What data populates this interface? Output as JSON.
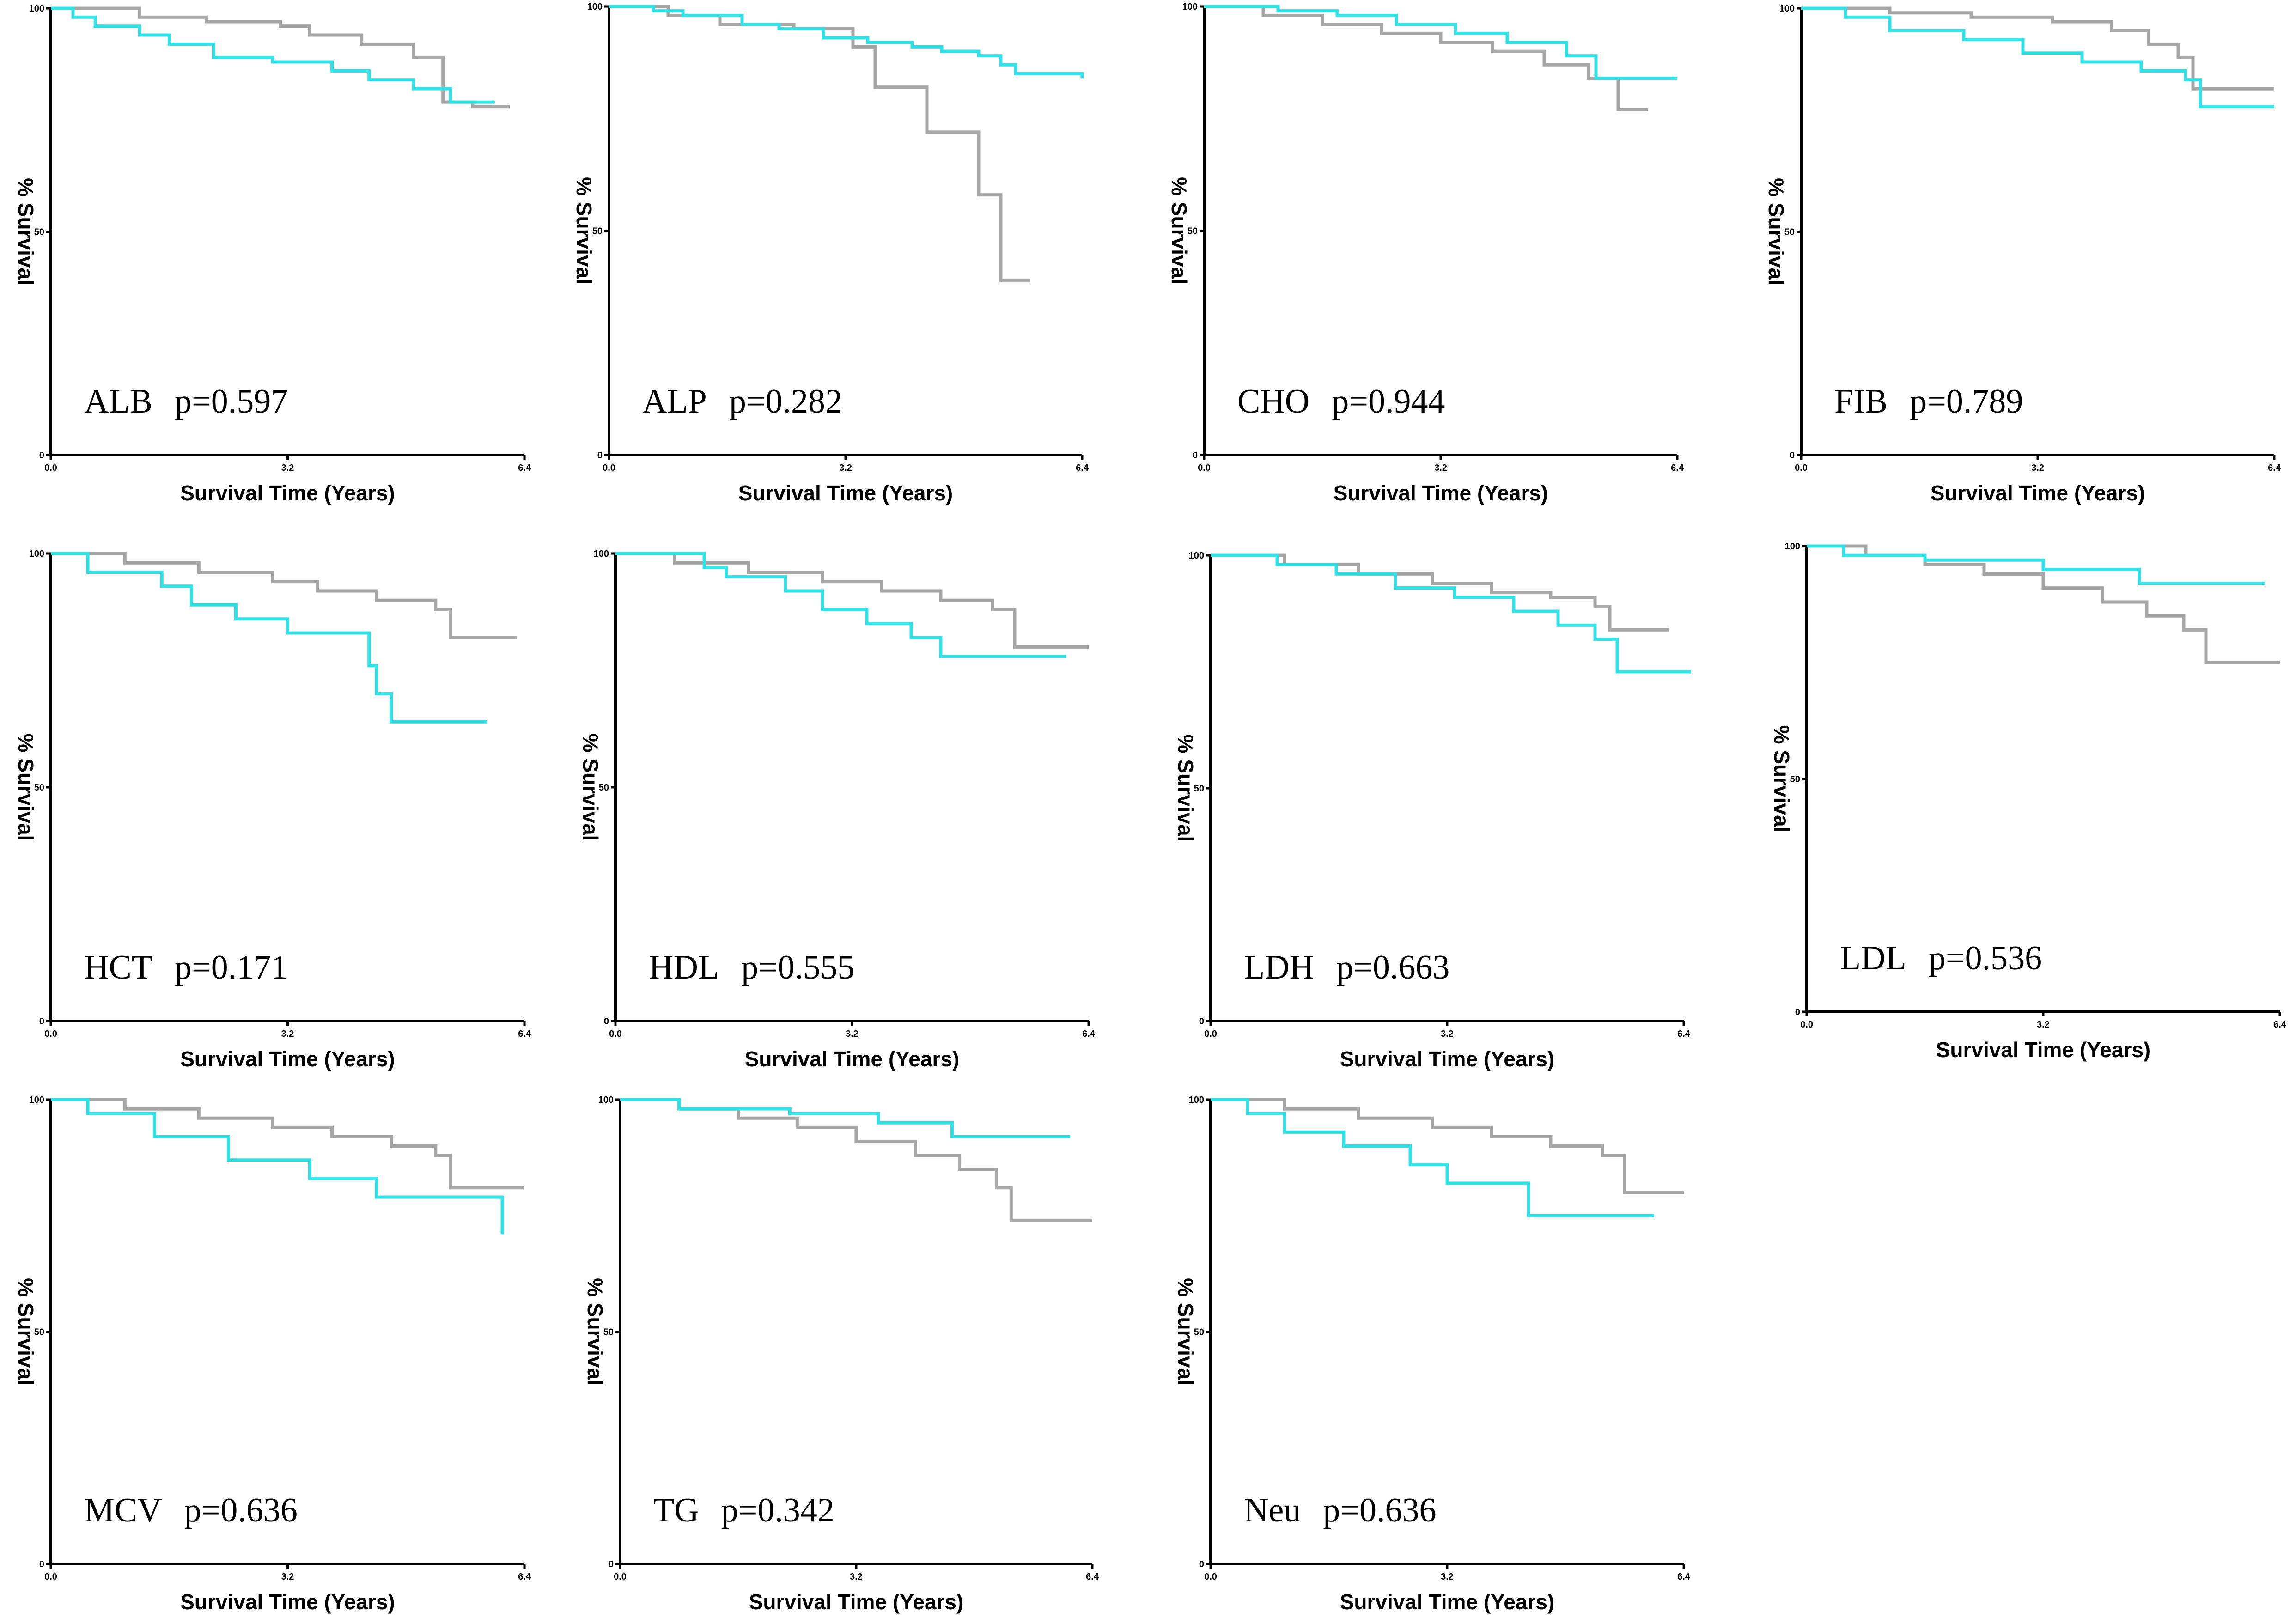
{
  "chart_data": [
    {
      "type": "line",
      "marker": "ALB",
      "p_label": "p=0.597",
      "xlabel": "Survival Time (Years)",
      "ylabel": "% Survival",
      "xlim": [
        0,
        6.4
      ],
      "ylim": [
        0,
        100
      ],
      "xticks": [
        "0.0",
        "3.2",
        "6.4"
      ],
      "yticks": [
        "0",
        "50",
        "100"
      ],
      "series": [
        {
          "name": "cyan",
          "color": "#33E0E6",
          "x": [
            0,
            0.3,
            0.6,
            1.2,
            1.6,
            2.2,
            3.0,
            3.8,
            4.3,
            4.9,
            5.4,
            6.0
          ],
          "y": [
            100,
            98,
            96,
            94,
            92,
            89,
            88,
            86,
            84,
            82,
            79,
            79
          ]
        },
        {
          "name": "gray",
          "color": "#A6A6A6",
          "x": [
            0,
            1.2,
            2.1,
            3.1,
            3.5,
            4.2,
            4.9,
            5.3,
            5.7,
            6.2
          ],
          "y": [
            100,
            98,
            97,
            96,
            94,
            92,
            89,
            79,
            78,
            78
          ]
        }
      ]
    },
    {
      "type": "line",
      "marker": "ALP",
      "p_label": "p=0.282",
      "xlabel": "Survival Time (Years)",
      "ylabel": "% Survival",
      "xlim": [
        0,
        6.4
      ],
      "ylim": [
        0,
        100
      ],
      "xticks": [
        "0.0",
        "3.2",
        "6.4"
      ],
      "yticks": [
        "0",
        "50",
        "100"
      ],
      "series": [
        {
          "name": "cyan",
          "color": "#33E0E6",
          "x": [
            0,
            0.6,
            1.0,
            1.8,
            2.3,
            2.9,
            3.5,
            4.1,
            4.5,
            5.0,
            5.3,
            5.5,
            6.4
          ],
          "y": [
            100,
            99,
            98,
            96,
            95,
            93,
            92,
            91,
            90,
            89,
            87,
            85,
            84
          ]
        },
        {
          "name": "gray",
          "color": "#A6A6A6",
          "x": [
            0,
            0.8,
            1.5,
            2.5,
            3.3,
            3.6,
            4.3,
            5.0,
            5.3,
            5.7
          ],
          "y": [
            100,
            98,
            96,
            95,
            91,
            82,
            72,
            58,
            39,
            39
          ]
        }
      ]
    },
    {
      "type": "line",
      "marker": "CHO",
      "p_label": "p=0.944",
      "xlabel": "Survival Time (Years)",
      "ylabel": "% Survival",
      "xlim": [
        0,
        6.4
      ],
      "ylim": [
        0,
        100
      ],
      "xticks": [
        "0.0",
        "3.2",
        "6.4"
      ],
      "yticks": [
        "0",
        "50",
        "100"
      ],
      "series": [
        {
          "name": "cyan",
          "color": "#33E0E6",
          "x": [
            0,
            1.0,
            1.8,
            2.6,
            3.4,
            4.1,
            4.9,
            5.3,
            6.4
          ],
          "y": [
            100,
            99,
            98,
            96,
            94,
            92,
            89,
            84,
            84
          ]
        },
        {
          "name": "gray",
          "color": "#A6A6A6",
          "x": [
            0,
            0.8,
            1.6,
            2.4,
            3.2,
            3.9,
            4.6,
            5.2,
            5.6,
            6.0
          ],
          "y": [
            100,
            98,
            96,
            94,
            92,
            90,
            87,
            84,
            77,
            77
          ]
        }
      ]
    },
    {
      "type": "line",
      "marker": "FIB",
      "p_label": "p=0.789",
      "xlabel": "Survival Time (Years)",
      "ylabel": "% Survival",
      "xlim": [
        0,
        6.4
      ],
      "ylim": [
        0,
        100
      ],
      "xticks": [
        "0.0",
        "3.2",
        "6.4"
      ],
      "yticks": [
        "0",
        "50",
        "100"
      ],
      "series": [
        {
          "name": "cyan",
          "color": "#33E0E6",
          "x": [
            0,
            0.6,
            1.2,
            2.2,
            3.0,
            3.8,
            4.6,
            5.2,
            5.4,
            6.4
          ],
          "y": [
            100,
            98,
            95,
            93,
            90,
            88,
            86,
            84,
            78,
            78
          ]
        },
        {
          "name": "gray",
          "color": "#A6A6A6",
          "x": [
            0,
            1.2,
            2.3,
            3.4,
            4.2,
            4.7,
            5.1,
            5.3,
            6.4
          ],
          "y": [
            100,
            99,
            98,
            97,
            95,
            92,
            89,
            82,
            82
          ]
        }
      ]
    },
    {
      "type": "line",
      "marker": "HCT",
      "p_label": "p=0.171",
      "xlabel": "Survival Time (Years)",
      "ylabel": "% Survival",
      "xlim": [
        0,
        6.4
      ],
      "ylim": [
        0,
        100
      ],
      "xticks": [
        "0.0",
        "3.2",
        "6.4"
      ],
      "yticks": [
        "0",
        "50",
        "100"
      ],
      "series": [
        {
          "name": "cyan",
          "color": "#33E0E6",
          "x": [
            0,
            0.5,
            1.5,
            1.9,
            2.5,
            3.2,
            4.3,
            4.4,
            4.6,
            5.9
          ],
          "y": [
            100,
            96,
            93,
            89,
            86,
            83,
            76,
            70,
            64,
            64
          ]
        },
        {
          "name": "gray",
          "color": "#A6A6A6",
          "x": [
            0,
            1.0,
            2.0,
            3.0,
            3.6,
            4.4,
            5.2,
            5.4,
            6.3
          ],
          "y": [
            100,
            98,
            96,
            94,
            92,
            90,
            88,
            82,
            82
          ]
        }
      ]
    },
    {
      "type": "line",
      "marker": "HDL",
      "p_label": "p=0.555",
      "xlabel": "Survival Time (Years)",
      "ylabel": "% Survival",
      "xlim": [
        0,
        6.4
      ],
      "ylim": [
        0,
        100
      ],
      "xticks": [
        "0.0",
        "3.2",
        "6.4"
      ],
      "yticks": [
        "0",
        "50",
        "100"
      ],
      "series": [
        {
          "name": "cyan",
          "color": "#33E0E6",
          "x": [
            0,
            1.2,
            1.5,
            2.3,
            2.8,
            3.4,
            4.0,
            4.4,
            6.1
          ],
          "y": [
            100,
            97,
            95,
            92,
            88,
            85,
            82,
            78,
            78
          ]
        },
        {
          "name": "gray",
          "color": "#A6A6A6",
          "x": [
            0,
            0.8,
            1.8,
            2.8,
            3.6,
            4.4,
            5.1,
            5.4,
            6.4
          ],
          "y": [
            100,
            98,
            96,
            94,
            92,
            90,
            88,
            80,
            80
          ]
        }
      ]
    },
    {
      "type": "line",
      "marker": "LDH",
      "p_label": "p=0.663",
      "xlabel": "Survival Time (Years)",
      "ylabel": "% Survival",
      "xlim": [
        0,
        6.4
      ],
      "ylim": [
        0,
        100
      ],
      "xticks": [
        "0.0",
        "3.2",
        "6.4"
      ],
      "yticks": [
        "0",
        "50",
        "100"
      ],
      "series": [
        {
          "name": "cyan",
          "color": "#33E0E6",
          "x": [
            0,
            0.9,
            1.7,
            2.5,
            3.3,
            4.1,
            4.7,
            5.2,
            5.5,
            6.5
          ],
          "y": [
            100,
            98,
            96,
            93,
            91,
            88,
            85,
            82,
            75,
            75
          ]
        },
        {
          "name": "gray",
          "color": "#A6A6A6",
          "x": [
            0,
            1.0,
            2.0,
            3.0,
            3.8,
            4.6,
            5.2,
            5.4,
            6.2
          ],
          "y": [
            100,
            98,
            96,
            94,
            92,
            91,
            89,
            84,
            84
          ]
        }
      ]
    },
    {
      "type": "line",
      "marker": "LDL",
      "p_label": "p=0.536",
      "xlabel": "Survival Time (Years)",
      "ylabel": "% Survival",
      "xlim": [
        0,
        6.4
      ],
      "ylim": [
        0,
        100
      ],
      "xticks": [
        "0.0",
        "3.2",
        "6.4"
      ],
      "yticks": [
        "0",
        "50",
        "100"
      ],
      "series": [
        {
          "name": "cyan",
          "color": "#33E0E6",
          "x": [
            0,
            0.5,
            1.6,
            3.2,
            4.5,
            6.2
          ],
          "y": [
            100,
            98,
            97,
            95,
            92,
            92
          ]
        },
        {
          "name": "gray",
          "color": "#A6A6A6",
          "x": [
            0,
            0.8,
            1.6,
            2.4,
            3.2,
            4.0,
            4.6,
            5.1,
            5.4,
            6.4
          ],
          "y": [
            100,
            98,
            96,
            94,
            91,
            88,
            85,
            82,
            75,
            75
          ]
        }
      ]
    },
    {
      "type": "line",
      "marker": "MCV",
      "p_label": "p=0.636",
      "xlabel": "Survival Time (Years)",
      "ylabel": "% Survival",
      "xlim": [
        0,
        6.4
      ],
      "ylim": [
        0,
        100
      ],
      "xticks": [
        "0.0",
        "3.2",
        "6.4"
      ],
      "yticks": [
        "0",
        "50",
        "100"
      ],
      "series": [
        {
          "name": "cyan",
          "color": "#33E0E6",
          "x": [
            0,
            0.5,
            1.4,
            2.4,
            3.5,
            4.4,
            6.1
          ],
          "y": [
            100,
            97,
            92,
            87,
            83,
            79,
            71
          ]
        },
        {
          "name": "gray",
          "color": "#A6A6A6",
          "x": [
            0,
            1.0,
            2.0,
            3.0,
            3.8,
            4.6,
            5.2,
            5.4,
            6.4
          ],
          "y": [
            100,
            98,
            96,
            94,
            92,
            90,
            88,
            81,
            81
          ]
        }
      ]
    },
    {
      "type": "line",
      "marker": "TG",
      "p_label": "p=0.342",
      "xlabel": "Survival Time (Years)",
      "ylabel": "% Survival",
      "xlim": [
        0,
        6.4
      ],
      "ylim": [
        0,
        100
      ],
      "xticks": [
        "0.0",
        "3.2",
        "6.4"
      ],
      "yticks": [
        "0",
        "50",
        "100"
      ],
      "series": [
        {
          "name": "cyan",
          "color": "#33E0E6",
          "x": [
            0,
            0.8,
            2.3,
            3.5,
            4.5,
            6.1
          ],
          "y": [
            100,
            98,
            97,
            95,
            92,
            92
          ]
        },
        {
          "name": "gray",
          "color": "#A6A6A6",
          "x": [
            0,
            0.8,
            1.6,
            2.4,
            3.2,
            4.0,
            4.6,
            5.1,
            5.3,
            6.4
          ],
          "y": [
            100,
            98,
            96,
            94,
            91,
            88,
            85,
            81,
            74,
            74
          ]
        }
      ]
    },
    {
      "type": "line",
      "marker": "Neu",
      "p_label": "p=0.636",
      "xlabel": "Survival Time (Years)",
      "ylabel": "% Survival",
      "xlim": [
        0,
        6.4
      ],
      "ylim": [
        0,
        100
      ],
      "xticks": [
        "0.0",
        "3.2",
        "6.4"
      ],
      "yticks": [
        "0",
        "50",
        "100"
      ],
      "series": [
        {
          "name": "cyan",
          "color": "#33E0E6",
          "x": [
            0,
            0.5,
            1.0,
            1.8,
            2.7,
            3.2,
            4.3,
            6.0
          ],
          "y": [
            100,
            97,
            93,
            90,
            86,
            82,
            75,
            75
          ]
        },
        {
          "name": "gray",
          "color": "#A6A6A6",
          "x": [
            0,
            1.0,
            2.0,
            3.0,
            3.8,
            4.6,
            5.3,
            5.6,
            6.4
          ],
          "y": [
            100,
            98,
            96,
            94,
            92,
            90,
            88,
            80,
            80
          ]
        }
      ]
    }
  ]
}
